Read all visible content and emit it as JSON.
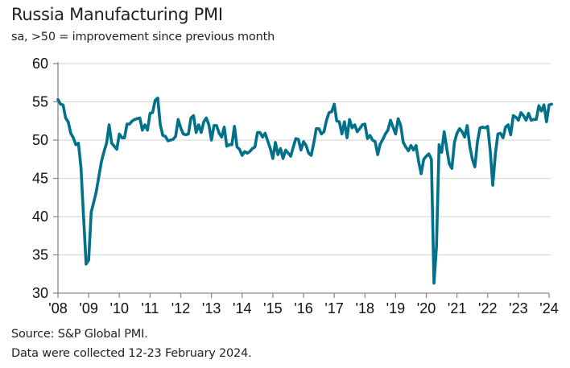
{
  "chart_data": {
    "type": "line",
    "title": "Russia Manufacturing PMI",
    "subtitle": "sa, >50 = improvement since previous month",
    "xlabel": "",
    "ylabel": "",
    "ylim": [
      30,
      60
    ],
    "yticks": [
      "30",
      "35",
      "40",
      "45",
      "50",
      "55",
      "60"
    ],
    "xticks": [
      "'08",
      "'09",
      "'10",
      "'11",
      "'12",
      "'13",
      "'14",
      "'15",
      "'16",
      "'17",
      "'18",
      "'19",
      "'20",
      "'21",
      "'22",
      "'23",
      "'24"
    ],
    "xrange": [
      "2008-01",
      "2024-02"
    ],
    "grid": true,
    "legend": "none",
    "line_color": "#00718a",
    "series": [
      {
        "name": "Russia Manufacturing PMI",
        "start": "2008-01",
        "frequency": "monthly",
        "values": [
          55.3,
          54.7,
          54.6,
          52.9,
          52.4,
          50.9,
          50.3,
          49.4,
          49.6,
          46.4,
          40.0,
          33.8,
          34.3,
          40.6,
          41.9,
          43.3,
          45.3,
          47.2,
          48.5,
          49.6,
          52.0,
          49.6,
          49.2,
          48.8,
          50.8,
          50.3,
          50.3,
          52.1,
          52.1,
          52.5,
          52.7,
          52.8,
          52.9,
          51.3,
          52.0,
          51.3,
          53.5,
          53.6,
          55.2,
          55.5,
          52.0,
          50.6,
          50.5,
          49.9,
          50.0,
          50.1,
          50.5,
          52.7,
          51.6,
          50.8,
          50.7,
          50.8,
          52.9,
          53.2,
          51.0,
          52.0,
          51.0,
          52.4,
          52.9,
          52.0,
          50.0,
          51.9,
          51.9,
          50.9,
          50.4,
          51.7,
          49.2,
          49.4,
          49.4,
          51.8,
          49.1,
          48.8,
          48.0,
          48.5,
          48.3,
          48.5,
          48.9,
          49.1,
          51.0,
          51.0,
          50.4,
          50.9,
          49.9,
          48.9,
          47.6,
          49.7,
          48.1,
          48.9,
          47.6,
          48.7,
          48.3,
          47.9,
          49.1,
          50.2,
          50.1,
          48.7,
          49.8,
          49.3,
          48.3,
          48.0,
          49.6,
          51.5,
          51.5,
          50.8,
          51.1,
          52.6,
          53.6,
          53.7,
          54.7,
          52.5,
          52.4,
          50.8,
          52.4,
          50.3,
          52.7,
          51.6,
          52.0,
          51.1,
          51.5,
          52.0,
          52.1,
          50.2,
          50.6,
          50.0,
          49.8,
          48.1,
          49.5,
          50.1,
          50.8,
          51.3,
          52.6,
          51.7,
          50.8,
          52.8,
          51.9,
          49.7,
          49.1,
          48.6,
          49.3,
          48.7,
          49.3,
          47.2,
          45.6,
          47.5,
          47.9,
          48.2,
          47.5,
          31.3,
          36.2,
          49.4,
          48.4,
          51.1,
          48.9,
          46.9,
          46.3,
          49.7,
          50.9,
          51.5,
          51.1,
          50.4,
          51.9,
          49.2,
          47.5,
          46.5,
          49.8,
          51.6,
          51.7,
          51.6,
          51.8,
          48.6,
          44.1,
          48.2,
          50.8,
          50.9,
          50.3,
          51.7,
          52.0,
          50.7,
          53.2,
          53.0,
          52.6,
          53.6,
          53.2,
          52.6,
          53.5,
          52.6,
          52.7,
          52.7,
          54.5,
          53.8,
          54.6,
          52.4,
          54.6,
          54.7
        ]
      }
    ]
  },
  "footer": {
    "source": "Source: S&P Global PMI.",
    "note": "Data were collected 12-23 February 2024."
  }
}
